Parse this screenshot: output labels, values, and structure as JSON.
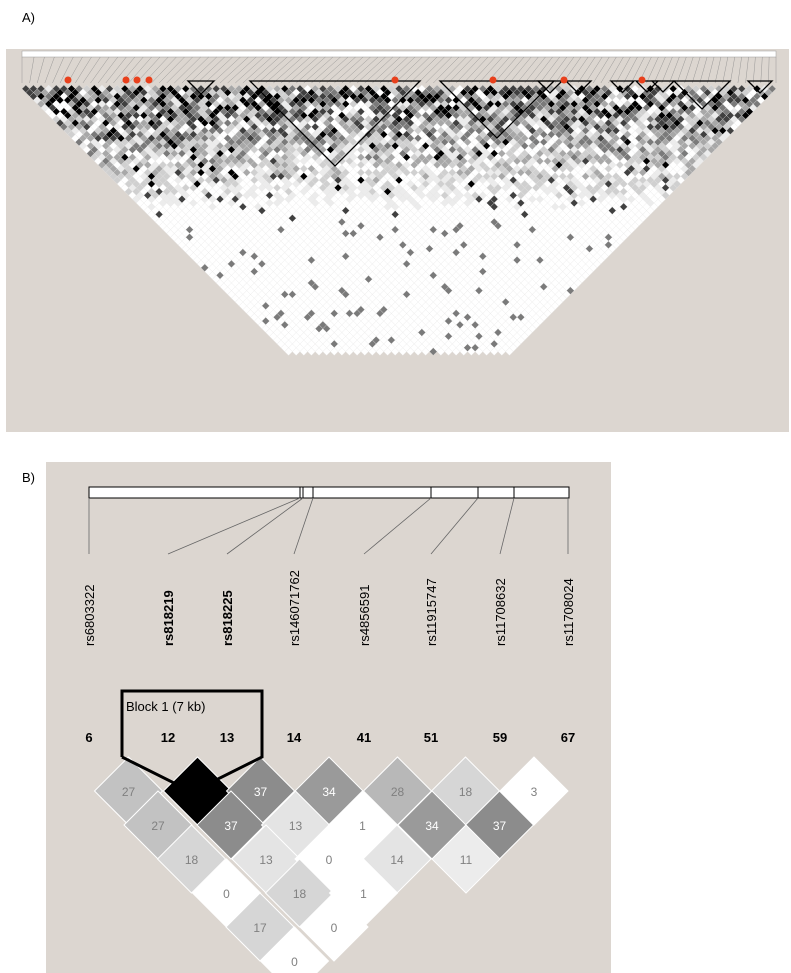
{
  "panel_labels": {
    "a": "A)",
    "b": "B)"
  },
  "panel_b": {
    "block_label": "Block 1 (7 kb)",
    "snps": [
      {
        "name": "rs6803322",
        "number": "6",
        "bold": false
      },
      {
        "name": "rs818219",
        "number": "12",
        "bold": true
      },
      {
        "name": "rs818225",
        "number": "13",
        "bold": true
      },
      {
        "name": "rs146071762",
        "number": "14",
        "bold": false
      },
      {
        "name": "rs4856591",
        "number": "41",
        "bold": false
      },
      {
        "name": "rs11915747",
        "number": "51",
        "bold": false
      },
      {
        "name": "rs11708632",
        "number": "59",
        "bold": false
      },
      {
        "name": "rs11708024",
        "number": "67",
        "bold": false
      }
    ],
    "ld_matrix": [
      [
        "27",
        "100",
        "37",
        "34",
        "28",
        "18",
        "3"
      ],
      [
        "27",
        "37",
        "13",
        "1",
        "34",
        "37"
      ],
      [
        "18",
        "13",
        "0",
        "14",
        "11"
      ],
      [
        "0",
        "18",
        "1"
      ],
      [
        "17",
        "0"
      ],
      [
        "0"
      ]
    ],
    "ld_shades": [
      [
        "#c2c2c2",
        "#000000",
        "#8c8c8c",
        "#9a9a9a",
        "#b8b8b8",
        "#d6d6d6",
        "#ffffff"
      ],
      [
        "#c2c2c2",
        "#8c8c8c",
        "#e4e4e4",
        "#ffffff",
        "#9a9a9a",
        "#8c8c8c"
      ],
      [
        "#d6d6d6",
        "#e4e4e4",
        "#ffffff",
        "#e4e4e4",
        "#ececec"
      ],
      [
        "#ffffff",
        "#d6d6d6",
        "#ffffff"
      ],
      [
        "#d6d6d6",
        "#ffffff"
      ],
      [
        "#ffffff"
      ]
    ]
  },
  "panel_a": {
    "marker_color": "#e8401c",
    "description_hidden": true
  }
}
